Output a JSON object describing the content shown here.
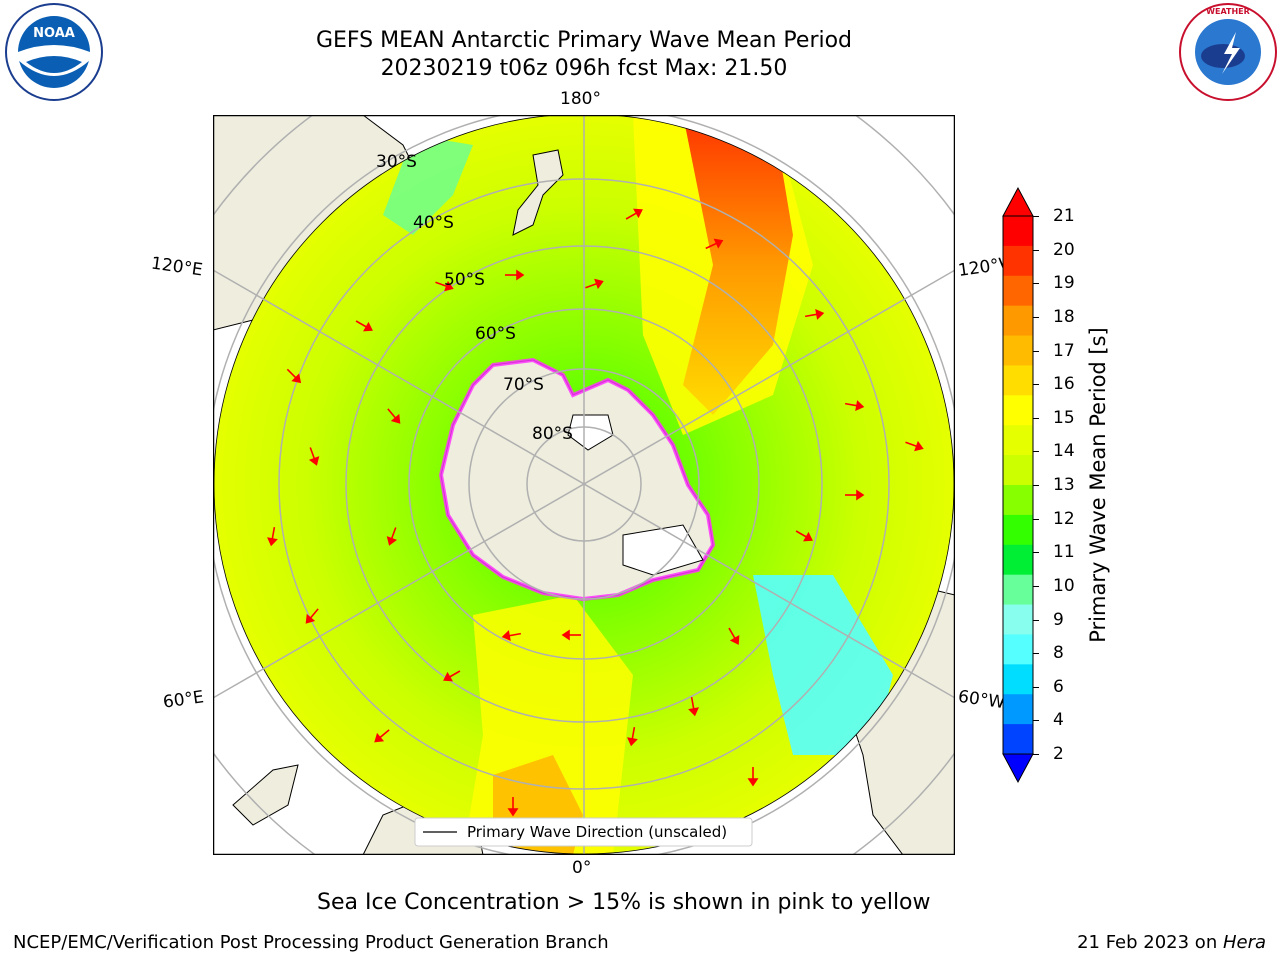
{
  "header": {
    "title_line1": "GEFS MEAN Antarctic Primary Wave Mean Period",
    "title_line2": "20230219 t06z 096h fcst   Max: 21.50"
  },
  "logos": {
    "left": {
      "name": "noaa-logo",
      "text": "NOAA"
    },
    "right": {
      "name": "nws-logo",
      "text": "NATIONAL WEATHER SERVICE"
    }
  },
  "map": {
    "projection": "south-polar-stereographic",
    "lon_labels": {
      "top": "180°",
      "bottom": "0°",
      "left_upper": "120°E",
      "left_lower": "60°E",
      "right_upper": "120°W",
      "right_lower": "60°W"
    },
    "lat_labels": [
      "30°S",
      "40°S",
      "50°S",
      "60°S",
      "70°S",
      "80°S"
    ],
    "legend_label": "Primary Wave Direction (unscaled)"
  },
  "colorbar": {
    "label": "Primary Wave Mean Period [s]",
    "ticks": [
      "21",
      "20",
      "19",
      "18",
      "17",
      "16",
      "15",
      "14",
      "13",
      "12",
      "11",
      "10",
      "9",
      "8",
      "6",
      "4",
      "2"
    ],
    "colors_top_to_bottom": [
      "#ff0000",
      "#ff3300",
      "#ff6600",
      "#ff9900",
      "#ffbb00",
      "#ffdd00",
      "#ffff00",
      "#e5ff00",
      "#ccff00",
      "#88ff00",
      "#33ff00",
      "#00ee33",
      "#66ff99",
      "#88ffee",
      "#55ffff",
      "#00ddff",
      "#0099ff",
      "#0044ff"
    ],
    "min_arrow_color": "#0000ff",
    "max_arrow_color": "#ff0000"
  },
  "notes": {
    "sea_ice": "Sea Ice Concentration > 15% is shown in pink to yellow"
  },
  "footer": {
    "left": "NCEP/EMC/Verification Post Processing Product Generation Branch",
    "right_date": "21 Feb 2023 on ",
    "right_host": "Hera"
  }
}
